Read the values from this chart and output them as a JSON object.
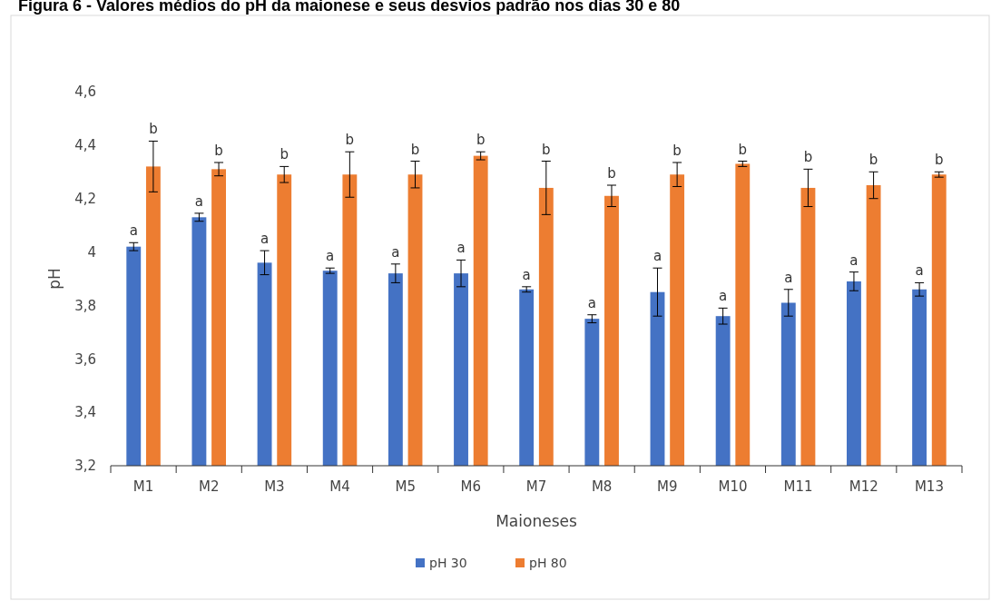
{
  "chart_data": {
    "type": "bar",
    "title": "Figura 6 - Valores médios do pH da maionese e seus desvios padrão nos dias 30 e 80",
    "xlabel": "Maioneses",
    "ylabel": "pH",
    "categories": [
      "M1",
      "M2",
      "M3",
      "M4",
      "M5",
      "M6",
      "M7",
      "M8",
      "M9",
      "M10",
      "M11",
      "M12",
      "M13"
    ],
    "series": [
      {
        "name": "pH 30",
        "color": "#4472c4",
        "values": [
          4.02,
          4.13,
          3.96,
          3.93,
          3.92,
          3.92,
          3.86,
          3.75,
          3.85,
          3.76,
          3.81,
          3.89,
          3.86
        ],
        "errors": [
          0.015,
          0.015,
          0.045,
          0.01,
          0.035,
          0.05,
          0.01,
          0.015,
          0.09,
          0.03,
          0.05,
          0.035,
          0.025
        ],
        "value_labels": [
          "a",
          "a",
          "a",
          "a",
          "a",
          "a",
          "a",
          "a",
          "a",
          "a",
          "a",
          "a",
          "a"
        ]
      },
      {
        "name": "pH 80",
        "color": "#ed7d31",
        "values": [
          4.32,
          4.31,
          4.29,
          4.29,
          4.29,
          4.36,
          4.24,
          4.21,
          4.29,
          4.33,
          4.24,
          4.25,
          4.29
        ],
        "errors": [
          0.095,
          0.025,
          0.03,
          0.085,
          0.05,
          0.015,
          0.1,
          0.04,
          0.045,
          0.01,
          0.07,
          0.05,
          0.01
        ],
        "value_labels": [
          "b",
          "b",
          "b",
          "b",
          "b",
          "b",
          "b",
          "b",
          "b",
          "b",
          "b",
          "b",
          "b"
        ]
      }
    ],
    "ylim": [
      3.2,
      4.6
    ],
    "yticks": [
      {
        "value": 3.2,
        "label": "3,2"
      },
      {
        "value": 3.4,
        "label": "3,4"
      },
      {
        "value": 3.6,
        "label": "3,6"
      },
      {
        "value": 3.8,
        "label": "3,8"
      },
      {
        "value": 4,
        "label": "4"
      },
      {
        "value": 4.2,
        "label": "4,2"
      },
      {
        "value": 4.4,
        "label": "4,4"
      },
      {
        "value": 4.6,
        "label": "4,6"
      }
    ],
    "legend": "bottom"
  }
}
